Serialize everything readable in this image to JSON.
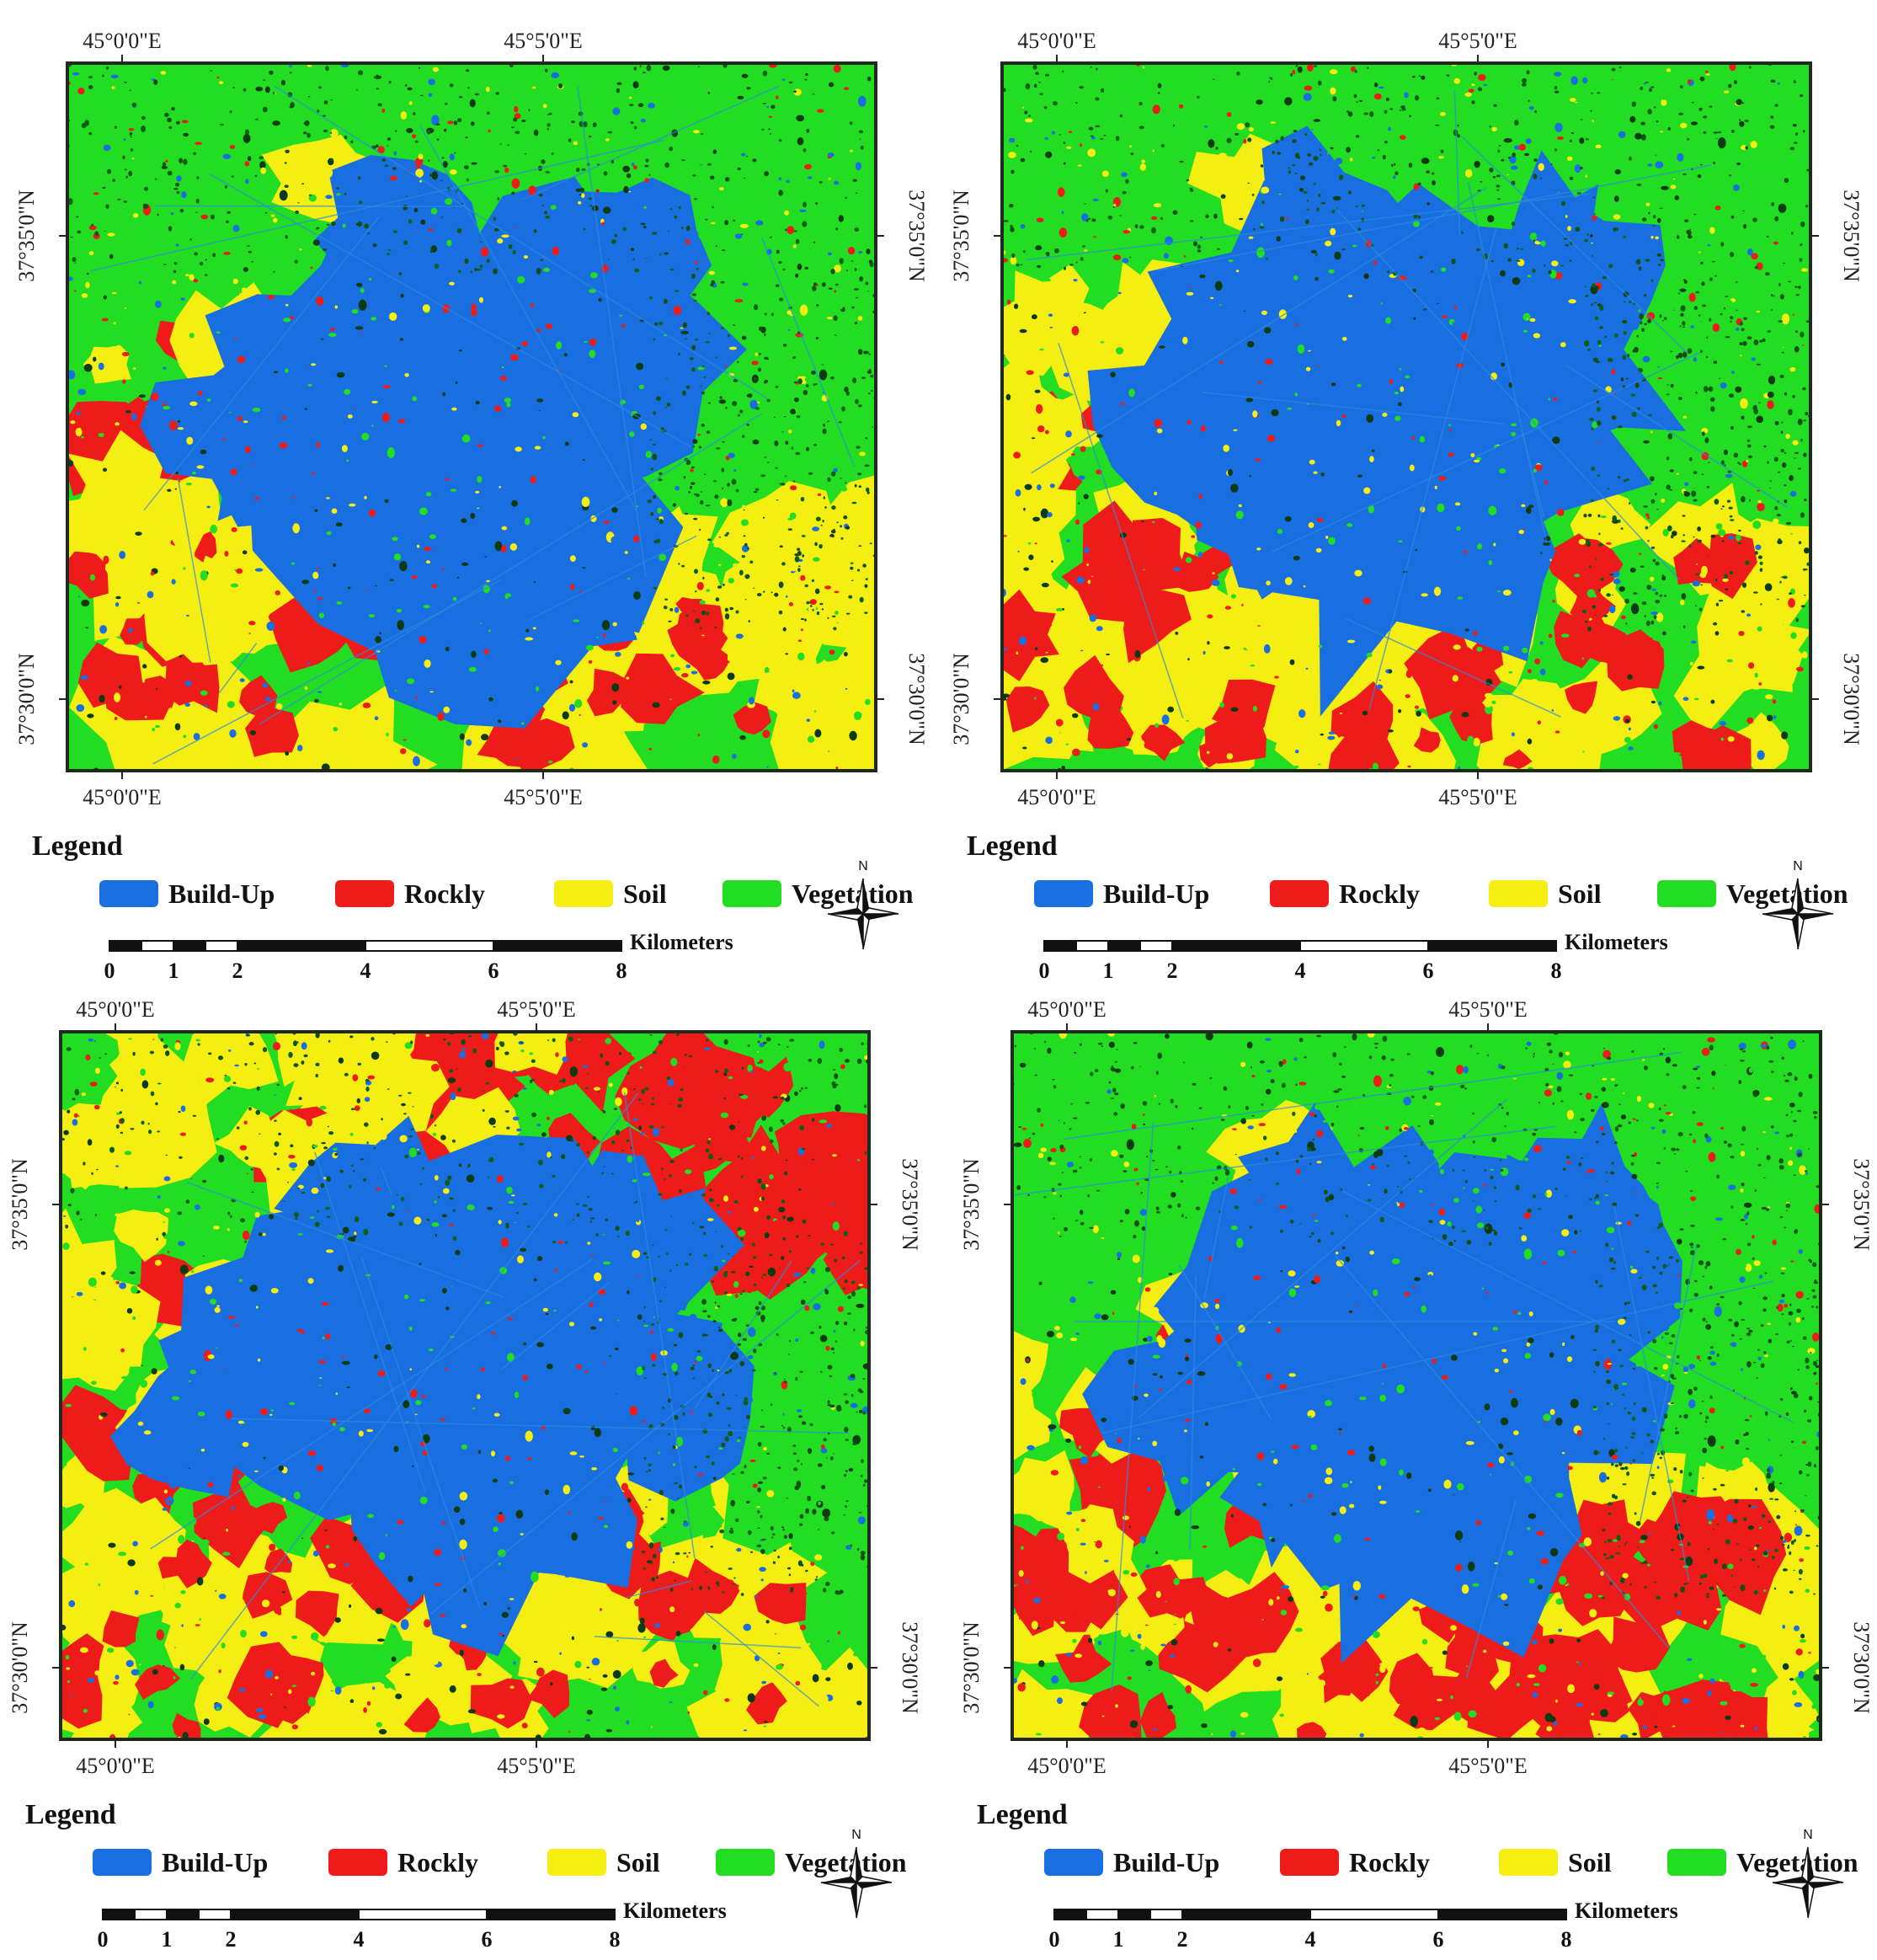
{
  "colors": {
    "build_up": "#1a6fe0",
    "rocky": "#ee1b1b",
    "soil": "#f4ee12",
    "vegetation": "#22dd22",
    "frame": "#1e2a1e"
  },
  "legend": {
    "title": "Legend",
    "items": [
      {
        "label": "Build-Up",
        "color": "#1a6fe0"
      },
      {
        "label": "Rockly",
        "color": "#ee1b1b"
      },
      {
        "label": "Soil",
        "color": "#f4ee12"
      },
      {
        "label": "Vegetation",
        "color": "#22dd22"
      }
    ]
  },
  "scale": {
    "unit": "Kilometers",
    "ticks": [
      "0",
      "1",
      "2",
      "4",
      "6",
      "8"
    ]
  },
  "north_arrow": {
    "label": "N",
    "icon": "north-arrow-icon"
  },
  "graticule": {
    "lon_labels": [
      "45°0'0\"E",
      "45°5'0\"E"
    ],
    "lat_labels": [
      "37°35'0\"N",
      "37°30'0\"N"
    ]
  },
  "maps": [
    {
      "id": "map-1",
      "variant": 0
    },
    {
      "id": "map-2",
      "variant": 0
    },
    {
      "id": "map-3",
      "variant": 1
    },
    {
      "id": "map-4",
      "variant": 2
    }
  ]
}
